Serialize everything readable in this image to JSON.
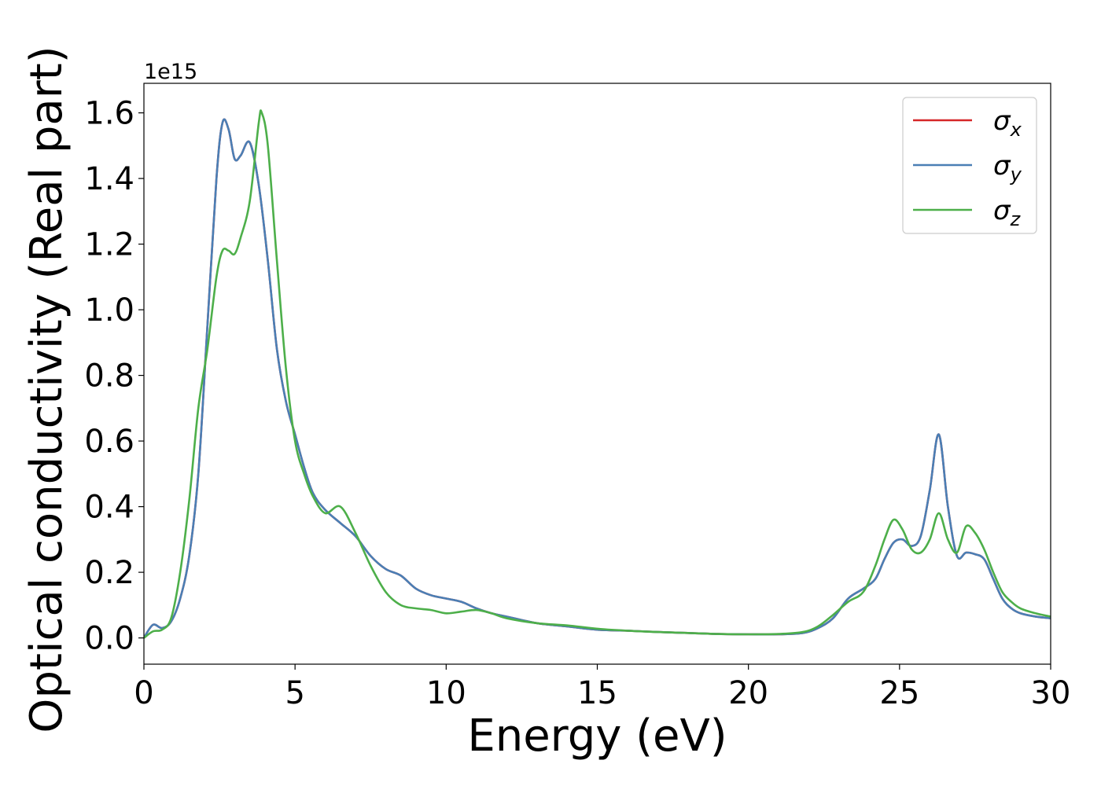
{
  "chart_data": {
    "type": "line",
    "title": "",
    "xlabel": "Energy (eV)",
    "ylabel": "Optical conductivity (Real part)",
    "y_offset_text": "1e15",
    "xlim": [
      0,
      30
    ],
    "ylim": [
      -0.08,
      1.69
    ],
    "x_ticks": [
      0,
      5,
      10,
      15,
      20,
      25,
      30
    ],
    "x_tick_labels": [
      "0",
      "5",
      "10",
      "15",
      "20",
      "25",
      "30"
    ],
    "y_ticks": [
      0.0,
      0.2,
      0.4,
      0.6,
      0.8,
      1.0,
      1.2,
      1.4,
      1.6
    ],
    "y_tick_labels": [
      "0.0",
      "0.2",
      "0.4",
      "0.6",
      "0.8",
      "1.0",
      "1.2",
      "1.4",
      "1.6"
    ],
    "grid": false,
    "legend_position": "top-right",
    "series": [
      {
        "name": "σx",
        "symbol": "σ",
        "subscript": "x",
        "color": "#d62728",
        "x": [
          0,
          0.3,
          0.6,
          0.9,
          1.2,
          1.5,
          1.8,
          2.1,
          2.4,
          2.6,
          2.8,
          3.0,
          3.2,
          3.5,
          3.8,
          4.1,
          4.4,
          4.7,
          5.0,
          5.3,
          5.6,
          6.0,
          6.5,
          7.0,
          7.5,
          8.0,
          8.5,
          9.0,
          9.5,
          10.0,
          10.5,
          11.0,
          11.5,
          12.0,
          13.0,
          14.0,
          15.0,
          16.0,
          17.0,
          18.0,
          19.0,
          20.0,
          21.0,
          21.8,
          22.3,
          22.8,
          23.3,
          23.8,
          24.2,
          24.5,
          24.8,
          25.1,
          25.4,
          25.7,
          26.0,
          26.3,
          26.6,
          26.9,
          27.2,
          27.5,
          27.8,
          28.1,
          28.4,
          28.7,
          29.0,
          29.5,
          30.0
        ],
        "values": [
          0.0,
          0.04,
          0.03,
          0.05,
          0.12,
          0.25,
          0.5,
          0.95,
          1.4,
          1.57,
          1.55,
          1.46,
          1.47,
          1.51,
          1.38,
          1.15,
          0.88,
          0.72,
          0.62,
          0.52,
          0.44,
          0.39,
          0.35,
          0.31,
          0.25,
          0.21,
          0.19,
          0.15,
          0.13,
          0.12,
          0.11,
          0.09,
          0.075,
          0.065,
          0.045,
          0.035,
          0.025,
          0.022,
          0.018,
          0.015,
          0.012,
          0.011,
          0.011,
          0.015,
          0.03,
          0.06,
          0.12,
          0.15,
          0.18,
          0.24,
          0.29,
          0.3,
          0.28,
          0.31,
          0.45,
          0.62,
          0.4,
          0.25,
          0.26,
          0.255,
          0.24,
          0.18,
          0.12,
          0.09,
          0.075,
          0.065,
          0.06
        ]
      },
      {
        "name": "σy",
        "symbol": "σ",
        "subscript": "y",
        "color": "#4a7fb5",
        "x": [
          0,
          0.3,
          0.6,
          0.9,
          1.2,
          1.5,
          1.8,
          2.1,
          2.4,
          2.6,
          2.8,
          3.0,
          3.2,
          3.5,
          3.8,
          4.1,
          4.4,
          4.7,
          5.0,
          5.3,
          5.6,
          6.0,
          6.5,
          7.0,
          7.5,
          8.0,
          8.5,
          9.0,
          9.5,
          10.0,
          10.5,
          11.0,
          11.5,
          12.0,
          13.0,
          14.0,
          15.0,
          16.0,
          17.0,
          18.0,
          19.0,
          20.0,
          21.0,
          21.8,
          22.3,
          22.8,
          23.3,
          23.8,
          24.2,
          24.5,
          24.8,
          25.1,
          25.4,
          25.7,
          26.0,
          26.3,
          26.6,
          26.9,
          27.2,
          27.5,
          27.8,
          28.1,
          28.4,
          28.7,
          29.0,
          29.5,
          30.0
        ],
        "values": [
          0.0,
          0.04,
          0.03,
          0.05,
          0.12,
          0.25,
          0.5,
          0.95,
          1.4,
          1.57,
          1.55,
          1.46,
          1.47,
          1.51,
          1.38,
          1.15,
          0.88,
          0.72,
          0.62,
          0.52,
          0.44,
          0.39,
          0.35,
          0.31,
          0.25,
          0.21,
          0.19,
          0.15,
          0.13,
          0.12,
          0.11,
          0.09,
          0.075,
          0.065,
          0.045,
          0.035,
          0.025,
          0.022,
          0.018,
          0.015,
          0.012,
          0.011,
          0.011,
          0.015,
          0.03,
          0.06,
          0.12,
          0.15,
          0.18,
          0.24,
          0.29,
          0.3,
          0.28,
          0.31,
          0.45,
          0.62,
          0.4,
          0.25,
          0.26,
          0.255,
          0.24,
          0.18,
          0.12,
          0.09,
          0.075,
          0.065,
          0.06
        ]
      },
      {
        "name": "σz",
        "symbol": "σ",
        "subscript": "z",
        "color": "#4daf4a",
        "x": [
          0,
          0.3,
          0.6,
          0.9,
          1.2,
          1.5,
          1.8,
          2.1,
          2.4,
          2.6,
          2.8,
          3.0,
          3.2,
          3.5,
          3.8,
          3.9,
          4.1,
          4.4,
          4.7,
          5.0,
          5.3,
          5.6,
          6.0,
          6.5,
          7.0,
          7.5,
          8.0,
          8.5,
          9.0,
          9.5,
          10.0,
          10.5,
          11.0,
          11.5,
          12.0,
          13.0,
          14.0,
          15.0,
          16.0,
          17.0,
          18.0,
          19.0,
          20.0,
          21.0,
          21.8,
          22.3,
          22.8,
          23.3,
          23.8,
          24.2,
          24.5,
          24.8,
          25.1,
          25.4,
          25.7,
          26.0,
          26.3,
          26.6,
          26.9,
          27.2,
          27.5,
          27.8,
          28.1,
          28.4,
          28.7,
          29.0,
          29.5,
          30.0
        ],
        "values": [
          0.0,
          0.02,
          0.025,
          0.06,
          0.2,
          0.42,
          0.7,
          0.88,
          1.1,
          1.18,
          1.18,
          1.17,
          1.22,
          1.33,
          1.57,
          1.6,
          1.5,
          1.15,
          0.82,
          0.6,
          0.5,
          0.43,
          0.38,
          0.4,
          0.32,
          0.22,
          0.14,
          0.1,
          0.09,
          0.085,
          0.075,
          0.08,
          0.085,
          0.075,
          0.06,
          0.045,
          0.038,
          0.028,
          0.022,
          0.018,
          0.015,
          0.012,
          0.011,
          0.012,
          0.018,
          0.035,
          0.07,
          0.11,
          0.14,
          0.22,
          0.3,
          0.36,
          0.33,
          0.27,
          0.26,
          0.3,
          0.38,
          0.3,
          0.26,
          0.34,
          0.32,
          0.27,
          0.2,
          0.14,
          0.11,
          0.09,
          0.075,
          0.065
        ]
      }
    ]
  }
}
